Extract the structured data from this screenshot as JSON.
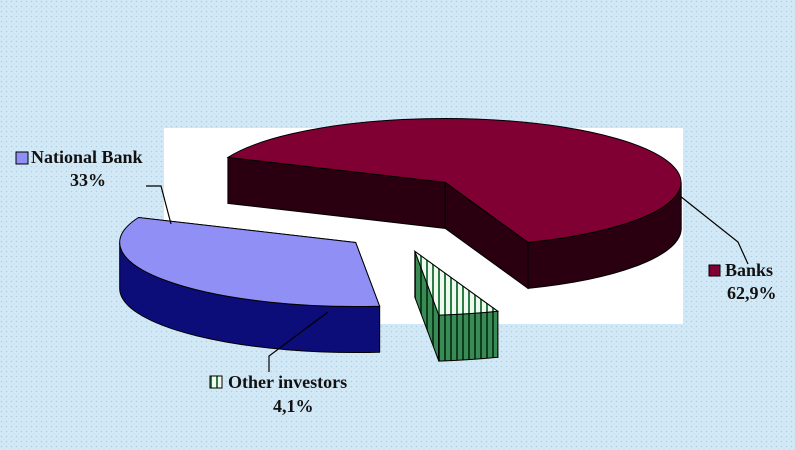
{
  "chart_data": {
    "type": "pie",
    "style": "3d-exploded",
    "slices": [
      {
        "name": "Banks",
        "label": "Banks",
        "value_label": "62,9%",
        "value": 62.9,
        "top_color": "#800033",
        "side_color": "#2a0010"
      },
      {
        "name": "National Bank",
        "label": "National Bank",
        "value_label": "33%",
        "value": 33,
        "top_color": "#8f8ff5",
        "side_color": "#0d0d7a"
      },
      {
        "name": "Other investors",
        "label": "Other investors",
        "value_label": "4,1%",
        "value": 4.1,
        "top_color": "#d8f0dc",
        "side_color": "#1f5c2e",
        "pattern": "vertical-stripes"
      }
    ],
    "legend": "inline-labels",
    "background": {
      "outer": "#d4e9f6",
      "plot": "#ffffff"
    }
  }
}
